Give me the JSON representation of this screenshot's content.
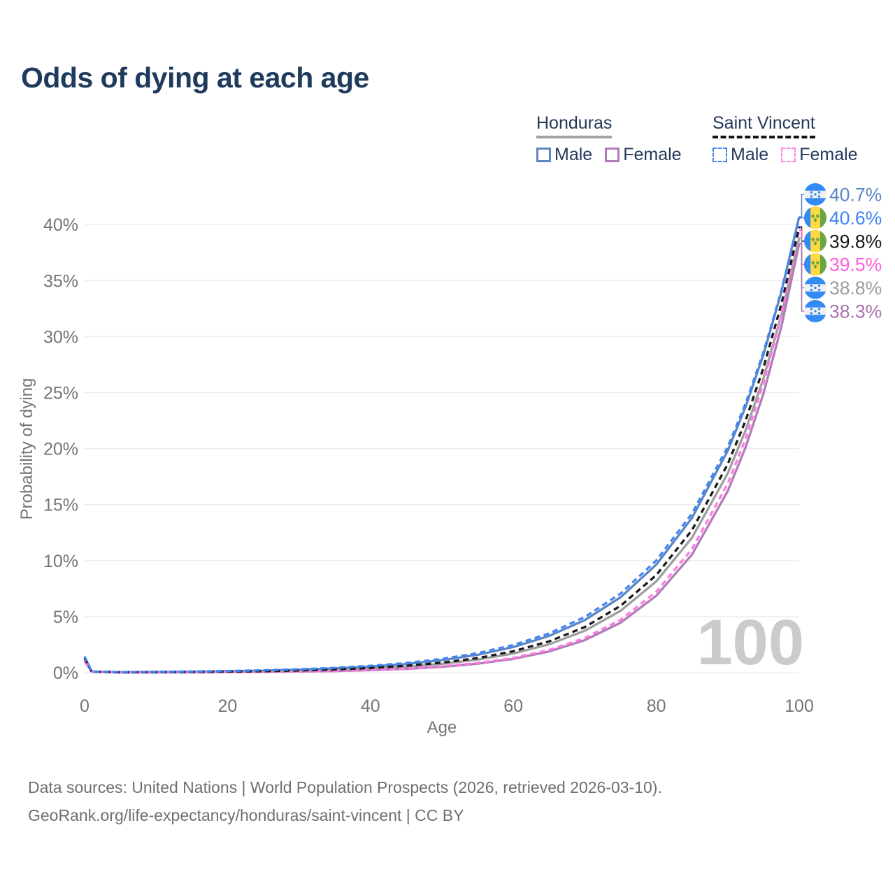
{
  "title": {
    "text": "Odds of dying at each age",
    "color": "#1e3a5c"
  },
  "text_color": "#24395b",
  "axis_color": "#757575",
  "grid_color": "#ebebeb",
  "watermark_color": "#cbcbcb",
  "legend": {
    "groups": [
      {
        "label": "Honduras",
        "underline_style": "solid",
        "underline_color": "#a3a3a3",
        "items": [
          {
            "label": "Male",
            "color": "#5b87c5",
            "dash": false
          },
          {
            "label": "Female",
            "color": "#b07cb8",
            "dash": false
          }
        ]
      },
      {
        "label": "Saint Vincent",
        "underline_style": "dashed",
        "underline_color": "#141414",
        "items": [
          {
            "label": "Male",
            "color": "#4285f4",
            "dash": true
          },
          {
            "label": "Female",
            "color": "#ff85e5",
            "dash": true
          }
        ]
      }
    ]
  },
  "chart_data": {
    "type": "line",
    "title": "Odds of dying at each age",
    "xlabel": "Age",
    "ylabel": "Probability of dying",
    "xlim": [
      0,
      100
    ],
    "ylim": [
      0,
      42.5
    ],
    "x_ticks": [
      0,
      20,
      40,
      60,
      80,
      100
    ],
    "y_ticks": [
      0,
      5,
      10,
      15,
      20,
      25,
      30,
      35,
      40
    ],
    "y_tick_suffix": "%",
    "grid": "horizontal",
    "legend_position": "top-right",
    "watermark": "100",
    "ages": [
      0,
      1,
      5,
      10,
      15,
      20,
      25,
      30,
      35,
      40,
      45,
      50,
      55,
      60,
      65,
      70,
      75,
      80,
      85,
      90,
      92.5,
      95,
      97.5,
      100
    ],
    "series": [
      {
        "name": "Honduras Female",
        "country": "Honduras",
        "sex": "Female",
        "style": "solid",
        "color": "#b07cb8",
        "end_label": "38.3%",
        "end_value": 38.3,
        "values": [
          1.05,
          0.07,
          0.011,
          0.017,
          0.026,
          0.039,
          0.061,
          0.093,
          0.143,
          0.22,
          0.338,
          0.52,
          0.799,
          1.23,
          1.89,
          2.9,
          4.46,
          6.86,
          10.54,
          16.21,
          20.12,
          24.91,
          30.89,
          38.3
        ]
      },
      {
        "name": "Honduras Total",
        "country": "Honduras",
        "sex": "Both",
        "style": "solid",
        "color": "#9e9e9e",
        "end_label": "38.8%",
        "end_value": 38.8,
        "values": [
          1.25,
          0.09,
          0.024,
          0.035,
          0.051,
          0.076,
          0.112,
          0.165,
          0.244,
          0.36,
          0.532,
          0.786,
          1.16,
          1.71,
          2.53,
          3.74,
          5.52,
          8.15,
          12.04,
          17.79,
          21.62,
          26.27,
          31.92,
          38.8
        ]
      },
      {
        "name": "Honduras Male",
        "country": "Honduras",
        "sex": "Male",
        "style": "solid",
        "color": "#5b87c5",
        "end_label": "40.7%",
        "end_value": 40.7,
        "values": [
          1.4,
          0.1,
          0.044,
          0.063,
          0.09,
          0.128,
          0.184,
          0.264,
          0.378,
          0.542,
          0.776,
          1.113,
          1.594,
          2.285,
          3.276,
          4.695,
          6.729,
          9.645,
          13.82,
          19.81,
          23.73,
          28.4,
          34.0,
          40.7
        ]
      },
      {
        "name": "Saint Vincent Female",
        "country": "Saint Vincent",
        "sex": "Female",
        "style": "dashed",
        "color": "#ff7ae2",
        "end_label": "39.5%",
        "end_value": 39.5,
        "values": [
          1.1,
          0.08,
          0.013,
          0.019,
          0.029,
          0.044,
          0.067,
          0.103,
          0.158,
          0.241,
          0.369,
          0.564,
          0.862,
          1.32,
          2.02,
          3.09,
          4.72,
          7.22,
          11.04,
          16.88,
          20.87,
          25.82,
          31.94,
          39.5
        ]
      },
      {
        "name": "Saint Vincent Total",
        "country": "Saint Vincent",
        "sex": "Both",
        "style": "dashed",
        "color": "#1a1a1a",
        "end_label": "39.8%",
        "end_value": 39.8,
        "values": [
          1.3,
          0.09,
          0.029,
          0.043,
          0.062,
          0.091,
          0.133,
          0.195,
          0.285,
          0.417,
          0.61,
          0.892,
          1.3,
          1.91,
          2.79,
          4.07,
          5.96,
          8.71,
          12.73,
          18.62,
          22.5,
          27.22,
          32.9,
          39.8
        ]
      },
      {
        "name": "Saint Vincent Male",
        "country": "Saint Vincent",
        "sex": "Male",
        "style": "dashed",
        "color": "#4285f4",
        "end_label": "40.6%",
        "end_value": 40.6,
        "values": [
          1.45,
          0.1,
          0.053,
          0.075,
          0.106,
          0.15,
          0.213,
          0.302,
          0.429,
          0.609,
          0.864,
          1.23,
          1.74,
          2.47,
          3.5,
          4.97,
          7.06,
          10.01,
          14.21,
          20.16,
          24.02,
          28.61,
          34.08,
          40.6
        ]
      }
    ]
  },
  "end_labels": [
    {
      "text": "40.7%",
      "value": 40.7,
      "color": "#5b87c5",
      "flag": "honduras",
      "series": "Honduras Male"
    },
    {
      "text": "40.6%",
      "value": 40.6,
      "color": "#4285f4",
      "flag": "saint-vincent",
      "series": "Saint Vincent Male"
    },
    {
      "text": "39.8%",
      "value": 39.8,
      "color": "#1a1a1a",
      "flag": "saint-vincent",
      "series": "Saint Vincent Total"
    },
    {
      "text": "39.5%",
      "value": 39.5,
      "color": "#ff5fd8",
      "flag": "saint-vincent",
      "series": "Saint Vincent Female"
    },
    {
      "text": "38.8%",
      "value": 38.8,
      "color": "#9e9e9e",
      "flag": "honduras",
      "series": "Honduras Total"
    },
    {
      "text": "38.3%",
      "value": 38.3,
      "color": "#a873ae",
      "flag": "honduras",
      "series": "Honduras Female"
    }
  ],
  "flag_colors": {
    "honduras": {
      "blue": "#338af3",
      "white": "#f0f0f0"
    },
    "saint_vincent": {
      "blue": "#338af3",
      "yellow": "#ffda44",
      "green": "#6da544"
    }
  },
  "footer": {
    "line1": "Data sources: United Nations | World Population Prospects (2026, retrieved 2026-03-10).",
    "line2": "GeoRank.org/life-expectancy/honduras/saint-vincent | CC BY"
  }
}
